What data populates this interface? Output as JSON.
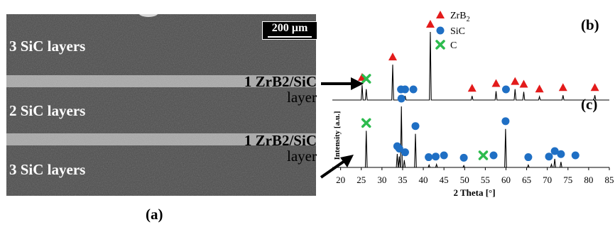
{
  "panel_a": {
    "label": "(a)",
    "scale_bar": "200 µm",
    "layers": [
      {
        "label": "3 SiC layers"
      },
      {
        "label": "1 ZrB2/SiC",
        "label2": "layer"
      },
      {
        "label": "2 SiC layers"
      },
      {
        "label": "1 ZrB2/SiC",
        "label2": "layer"
      },
      {
        "label": "3 SiC layers"
      }
    ]
  },
  "chart_data": {
    "type": "line",
    "xlabel": "2 Theta [°]",
    "ylabel": "Intensity [a.u.]",
    "xlim": [
      18,
      85
    ],
    "x_ticks": [
      20,
      25,
      30,
      35,
      40,
      45,
      50,
      55,
      60,
      65,
      70,
      75,
      80,
      85
    ],
    "legend": {
      "placement": "top-center",
      "entries": [
        {
          "name": "ZrB2",
          "marker": "triangle",
          "color": "#e31b1b"
        },
        {
          "name": "SiC",
          "marker": "circle",
          "color": "#1f6fc4"
        },
        {
          "name": "C",
          "marker": "cross",
          "color": "#2dbb4e"
        }
      ]
    },
    "panel_labels": [
      "(b)",
      "(c)"
    ],
    "series": [
      {
        "panel": "(b)",
        "peaks": [
          {
            "x": 25.2,
            "h": 0.22
          },
          {
            "x": 26.2,
            "h": 0.16
          },
          {
            "x": 32.6,
            "h": 0.52
          },
          {
            "x": 34.1,
            "h": 0.05
          },
          {
            "x": 35.6,
            "h": 0.06
          },
          {
            "x": 41.7,
            "h": 1.0
          },
          {
            "x": 51.8,
            "h": 0.06
          },
          {
            "x": 57.6,
            "h": 0.13
          },
          {
            "x": 62.2,
            "h": 0.16
          },
          {
            "x": 64.3,
            "h": 0.12
          },
          {
            "x": 68.1,
            "h": 0.05
          },
          {
            "x": 73.8,
            "h": 0.07
          },
          {
            "x": 81.5,
            "h": 0.07
          }
        ],
        "markers": [
          {
            "x": 25.2,
            "type": "ZrB2"
          },
          {
            "x": 26.2,
            "type": "C"
          },
          {
            "x": 32.6,
            "type": "ZrB2"
          },
          {
            "x": 34.6,
            "type": "SiC"
          },
          {
            "x": 35.6,
            "type": "SiC"
          },
          {
            "x": 37.6,
            "type": "SiC"
          },
          {
            "x": 41.7,
            "type": "ZrB2"
          },
          {
            "x": 51.8,
            "type": "ZrB2"
          },
          {
            "x": 57.6,
            "type": "ZrB2"
          },
          {
            "x": 60.0,
            "type": "SiC"
          },
          {
            "x": 62.2,
            "type": "ZrB2"
          },
          {
            "x": 64.3,
            "type": "ZrB2"
          },
          {
            "x": 68.1,
            "type": "ZrB2"
          },
          {
            "x": 73.8,
            "type": "ZrB2"
          },
          {
            "x": 81.5,
            "type": "ZrB2"
          }
        ]
      },
      {
        "panel": "(c)",
        "peaks": [
          {
            "x": 26.2,
            "h": 0.6
          },
          {
            "x": 33.7,
            "h": 0.22
          },
          {
            "x": 34.2,
            "h": 0.18
          },
          {
            "x": 34.7,
            "h": 1.0
          },
          {
            "x": 35.4,
            "h": 0.12
          },
          {
            "x": 38.1,
            "h": 0.55
          },
          {
            "x": 41.4,
            "h": 0.04
          },
          {
            "x": 43.2,
            "h": 0.05
          },
          {
            "x": 49.8,
            "h": 0.03
          },
          {
            "x": 59.9,
            "h": 0.63
          },
          {
            "x": 65.4,
            "h": 0.04
          },
          {
            "x": 71.0,
            "h": 0.05
          },
          {
            "x": 71.8,
            "h": 0.14
          },
          {
            "x": 73.3,
            "h": 0.09
          }
        ],
        "markers": [
          {
            "x": 26.2,
            "type": "C"
          },
          {
            "x": 33.7,
            "type": "SiC"
          },
          {
            "x": 34.2,
            "type": "SiC"
          },
          {
            "x": 34.7,
            "type": "SiC"
          },
          {
            "x": 35.6,
            "type": "SiC"
          },
          {
            "x": 38.1,
            "type": "SiC"
          },
          {
            "x": 41.3,
            "type": "SiC"
          },
          {
            "x": 43.0,
            "type": "SiC"
          },
          {
            "x": 45.0,
            "type": "SiC"
          },
          {
            "x": 49.8,
            "type": "SiC"
          },
          {
            "x": 54.5,
            "type": "C"
          },
          {
            "x": 57.0,
            "type": "SiC"
          },
          {
            "x": 59.9,
            "type": "SiC"
          },
          {
            "x": 65.4,
            "type": "SiC"
          },
          {
            "x": 70.4,
            "type": "SiC"
          },
          {
            "x": 71.8,
            "type": "SiC"
          },
          {
            "x": 73.3,
            "type": "SiC"
          },
          {
            "x": 76.8,
            "type": "SiC"
          }
        ]
      }
    ]
  }
}
